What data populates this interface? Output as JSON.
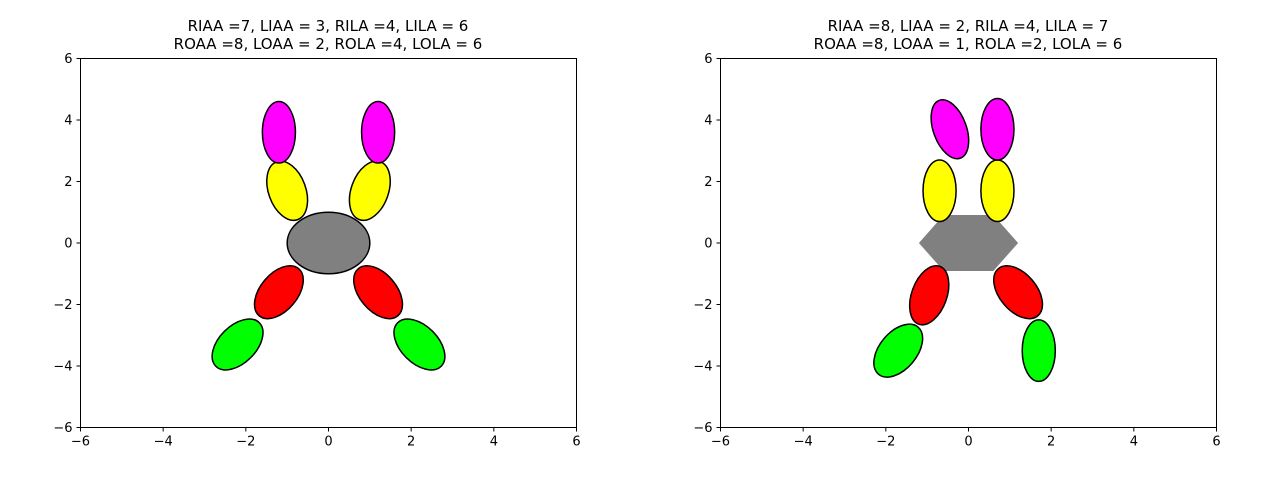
{
  "chart_data": [
    {
      "type": "scatter",
      "title_line1": "RIAA =7, LIAA = 3, RILA =4, LILA = 6",
      "title_line2": "ROAA =8, LOAA = 2, ROLA =4, LOLA = 6",
      "xlim": [
        -6,
        6
      ],
      "ylim": [
        -6,
        6
      ],
      "x_ticks": [
        -6,
        -4,
        -2,
        0,
        2,
        4,
        6
      ],
      "y_ticks": [
        -6,
        -4,
        -2,
        0,
        2,
        4,
        6
      ],
      "x_tick_labels": [
        "−6",
        "−4",
        "−2",
        "0",
        "2",
        "4",
        "6"
      ],
      "y_tick_labels": [
        "−6",
        "−4",
        "−2",
        "0",
        "2",
        "4",
        "6"
      ],
      "grid": false,
      "body": {
        "shape": "ellipse",
        "x": 0,
        "y": 0,
        "rx": 1.0,
        "ry": 1.0,
        "color": "#808080",
        "outline": true
      },
      "segments": [
        {
          "name": "upper-left-inner",
          "color": "#ffff00",
          "x": -1.0,
          "y": 1.7,
          "width": 0.9,
          "height": 2.0,
          "angle": 20
        },
        {
          "name": "upper-right-inner",
          "color": "#ffff00",
          "x": 1.0,
          "y": 1.7,
          "width": 0.9,
          "height": 2.0,
          "angle": -20
        },
        {
          "name": "upper-left-outer",
          "color": "#ff00ff",
          "x": -1.2,
          "y": 3.6,
          "width": 0.8,
          "height": 2.0,
          "angle": 0
        },
        {
          "name": "upper-right-outer",
          "color": "#ff00ff",
          "x": 1.2,
          "y": 3.6,
          "width": 0.8,
          "height": 2.0,
          "angle": 0
        },
        {
          "name": "lower-left-inner",
          "color": "#ff0000",
          "x": -1.2,
          "y": -1.6,
          "width": 0.9,
          "height": 2.0,
          "angle": -40
        },
        {
          "name": "lower-right-inner",
          "color": "#ff0000",
          "x": 1.2,
          "y": -1.6,
          "width": 0.9,
          "height": 2.0,
          "angle": 40
        },
        {
          "name": "lower-left-outer",
          "color": "#00ff00",
          "x": -2.2,
          "y": -3.3,
          "width": 0.9,
          "height": 2.0,
          "angle": -45
        },
        {
          "name": "lower-right-outer",
          "color": "#00ff00",
          "x": 2.2,
          "y": -3.3,
          "width": 0.9,
          "height": 2.0,
          "angle": 45
        }
      ]
    },
    {
      "type": "scatter",
      "title_line1": "RIAA =8, LIAA = 2, RILA =4, LILA = 7",
      "title_line2": "ROAA =8, LOAA = 1, ROLA =2, LOLA = 6",
      "xlim": [
        -6,
        6
      ],
      "ylim": [
        -6,
        6
      ],
      "x_ticks": [
        -6,
        -4,
        -2,
        0,
        2,
        4,
        6
      ],
      "y_ticks": [
        -6,
        -4,
        -2,
        0,
        2,
        4,
        6
      ],
      "x_tick_labels": [
        "−6",
        "−4",
        "−2",
        "0",
        "2",
        "4",
        "6"
      ],
      "y_tick_labels": [
        "−6",
        "−4",
        "−2",
        "0",
        "2",
        "4",
        "6"
      ],
      "grid": false,
      "body": {
        "shape": "hexagon",
        "x": 0,
        "y": 0,
        "rx": 1.2,
        "ry": 1.05,
        "color": "#808080",
        "outline": false
      },
      "segments": [
        {
          "name": "upper-left-inner",
          "color": "#ffff00",
          "x": -0.7,
          "y": 1.7,
          "width": 0.8,
          "height": 2.0,
          "angle": 0
        },
        {
          "name": "upper-right-inner",
          "color": "#ffff00",
          "x": 0.7,
          "y": 1.7,
          "width": 0.8,
          "height": 2.0,
          "angle": 0
        },
        {
          "name": "upper-left-outer",
          "color": "#ff00ff",
          "x": -0.45,
          "y": 3.7,
          "width": 0.8,
          "height": 2.0,
          "angle": 20
        },
        {
          "name": "upper-right-outer",
          "color": "#ff00ff",
          "x": 0.7,
          "y": 3.7,
          "width": 0.8,
          "height": 2.0,
          "angle": 0
        },
        {
          "name": "lower-left-inner",
          "color": "#ff0000",
          "x": -0.95,
          "y": -1.7,
          "width": 0.85,
          "height": 2.0,
          "angle": -20
        },
        {
          "name": "lower-right-inner",
          "color": "#ff0000",
          "x": 1.2,
          "y": -1.6,
          "width": 0.9,
          "height": 2.0,
          "angle": 40
        },
        {
          "name": "lower-left-outer",
          "color": "#00ff00",
          "x": -1.7,
          "y": -3.5,
          "width": 0.9,
          "height": 2.0,
          "angle": -40
        },
        {
          "name": "lower-right-outer",
          "color": "#00ff00",
          "x": 1.7,
          "y": -3.5,
          "width": 0.8,
          "height": 2.0,
          "angle": 0
        }
      ]
    }
  ]
}
